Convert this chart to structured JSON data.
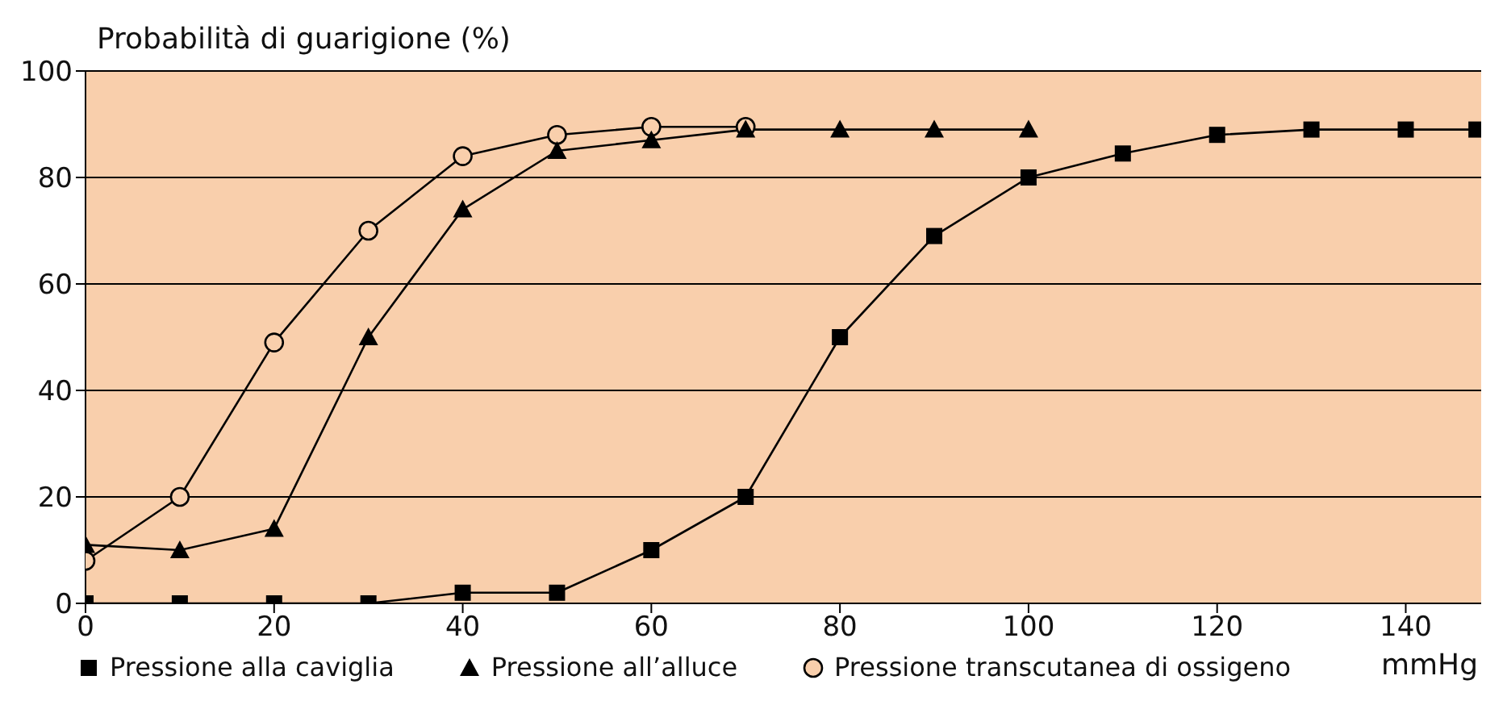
{
  "chart_data": {
    "type": "line",
    "ylabel": "Probabilità di guarigione (%)",
    "xlabel": "mmHg",
    "xlim": [
      0,
      148
    ],
    "xticks": [
      0,
      20,
      40,
      60,
      80,
      100,
      120,
      140
    ],
    "ylim": [
      0,
      100
    ],
    "yticks": [
      0,
      20,
      40,
      60,
      80,
      100
    ],
    "grid": "y",
    "legend": "bottom",
    "line_style": "solid",
    "series": [
      {
        "name": "Pressione alla caviglia",
        "color": "#000000",
        "marker": "square",
        "x": [
          0,
          10,
          20,
          30,
          40,
          50,
          60,
          70,
          80,
          90,
          100,
          110,
          120,
          130,
          140,
          147.5
        ],
        "values": [
          0,
          0,
          0,
          0,
          2,
          2,
          10,
          20,
          50,
          69,
          80,
          84.5,
          88,
          89,
          89,
          89
        ]
      },
      {
        "name": "Pressione all’alluce",
        "color": "#000000",
        "marker": "triangle",
        "x": [
          0,
          10,
          20,
          30,
          40,
          50,
          60,
          70,
          80,
          90,
          100
        ],
        "values": [
          11,
          10,
          14,
          50,
          74,
          85,
          87,
          89,
          89,
          89,
          89
        ]
      },
      {
        "name": "Pressione transcutanea di ossigeno",
        "color": "#000000",
        "marker": "circle",
        "x": [
          0,
          10,
          20,
          30,
          40,
          50,
          60,
          70
        ],
        "values": [
          8,
          20,
          49,
          70,
          84,
          88,
          89.5,
          89.5
        ]
      }
    ]
  }
}
